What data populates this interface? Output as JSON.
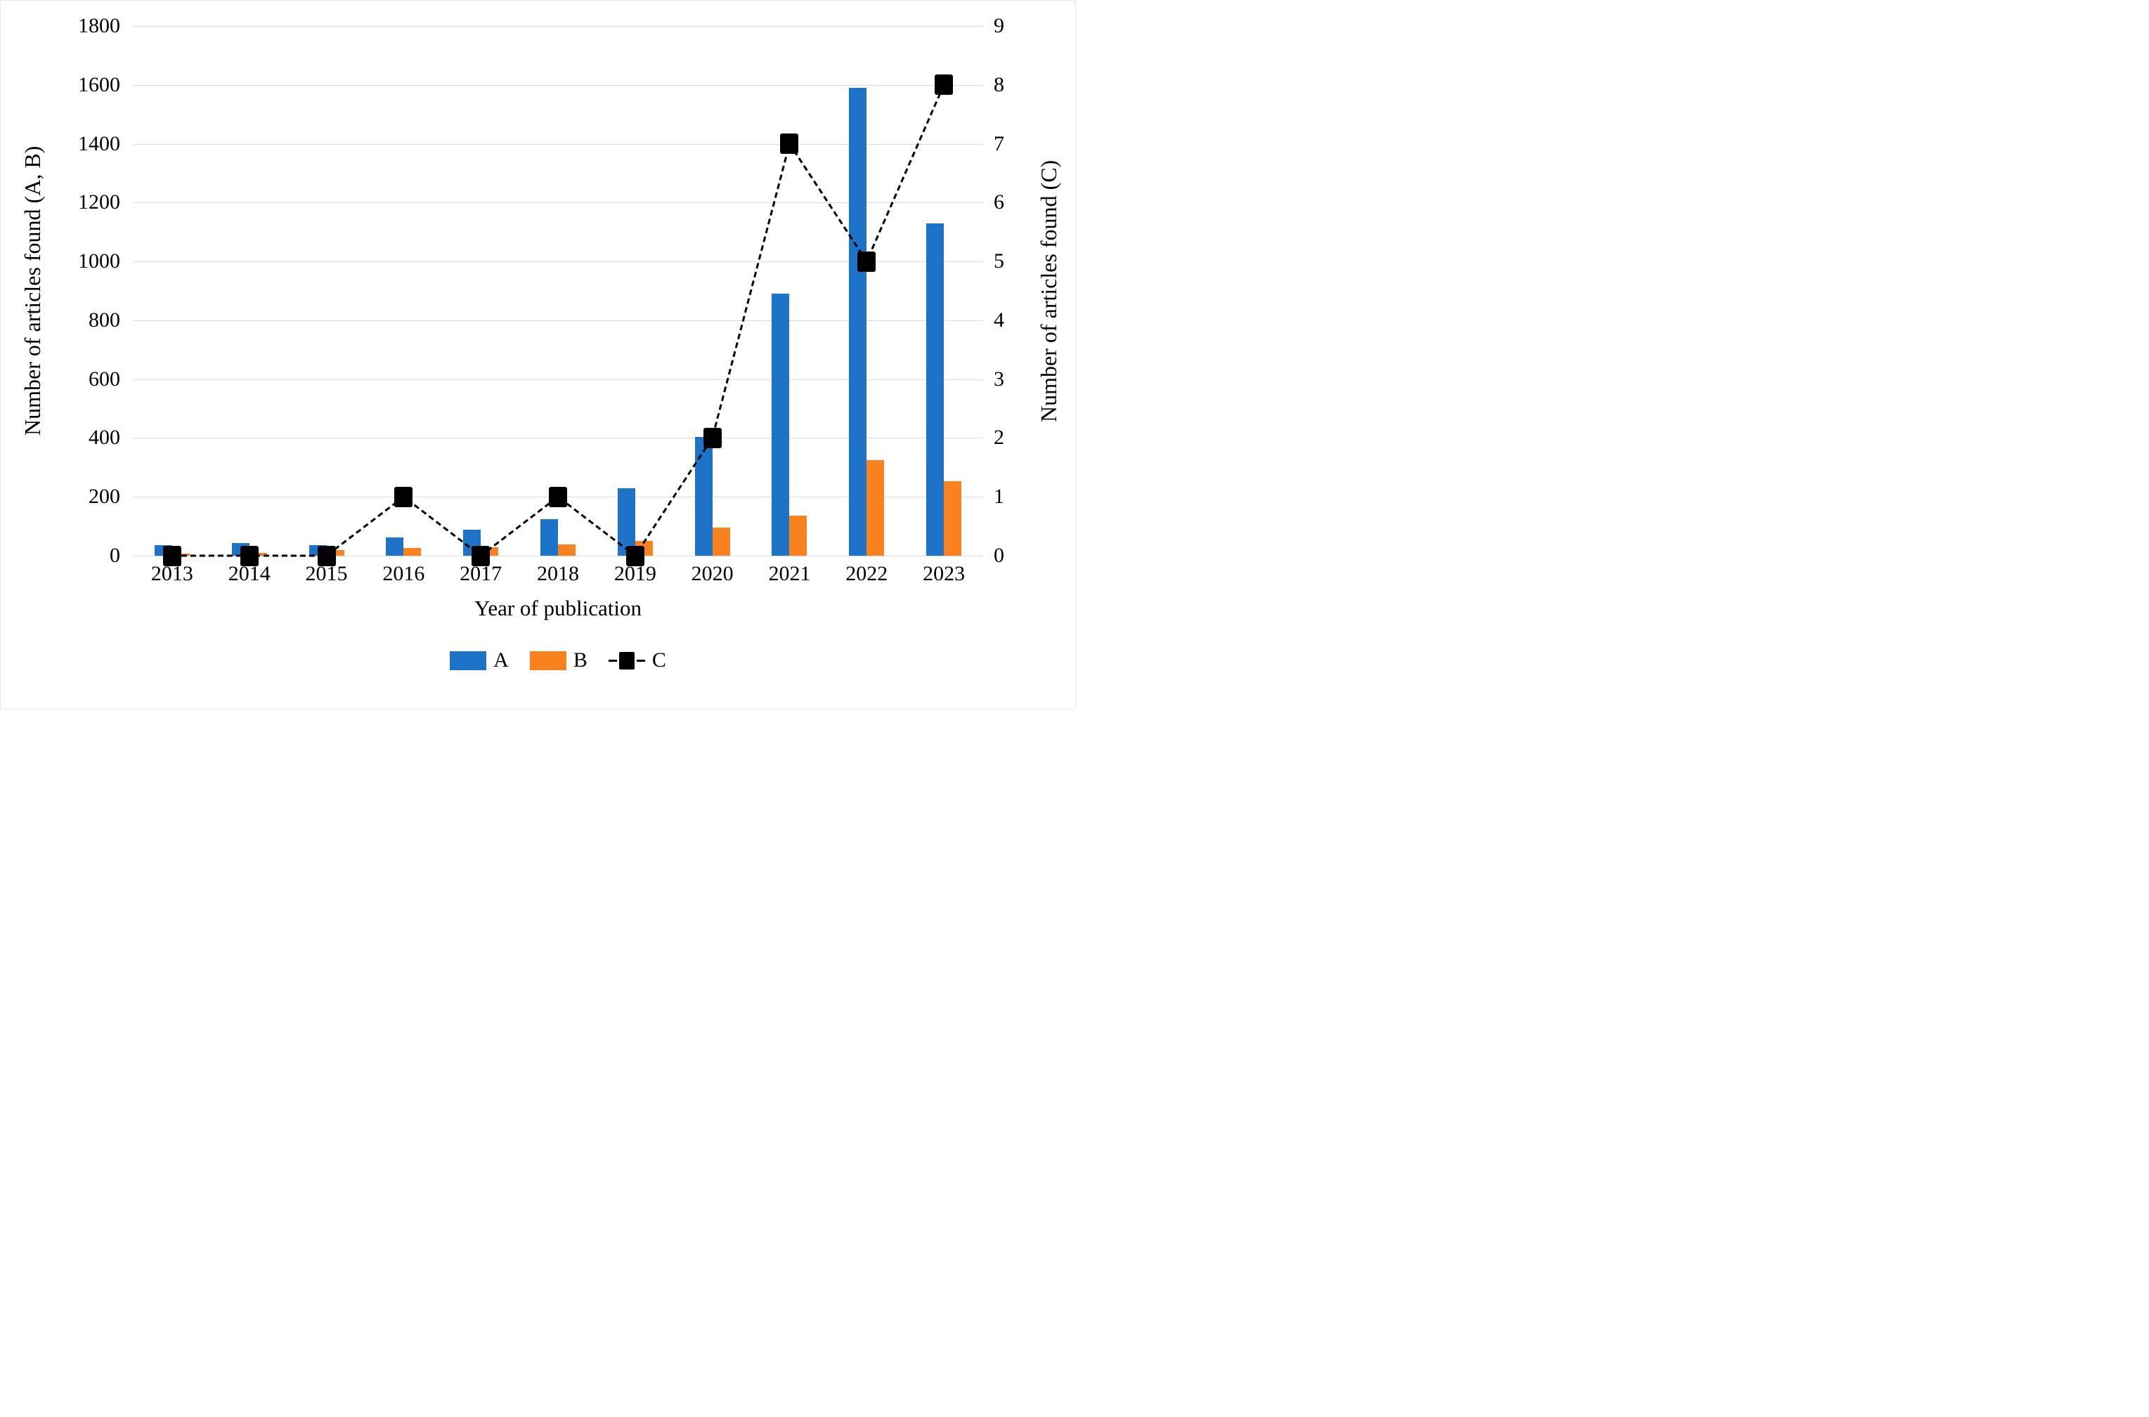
{
  "figure": {
    "background": "#ffffff"
  },
  "chart_data": {
    "type": "bar",
    "subtype": "grouped bars with secondary-axis dashed line",
    "categories": [
      "2013",
      "2014",
      "2015",
      "2016",
      "2017",
      "2018",
      "2019",
      "2020",
      "2021",
      "2022",
      "2023"
    ],
    "series": [
      {
        "name": "A",
        "type": "bar",
        "axis": "left",
        "color": "#1C73C8",
        "values": [
          35,
          42,
          35,
          62,
          88,
          123,
          230,
          403,
          890,
          1590,
          1130
        ]
      },
      {
        "name": "B",
        "type": "bar",
        "axis": "left",
        "color": "#F9821E",
        "values": [
          8,
          10,
          20,
          27,
          28,
          38,
          50,
          95,
          136,
          325,
          252
        ]
      },
      {
        "name": "C",
        "type": "line",
        "axis": "right",
        "color": "#000000",
        "line_style": "dashed",
        "marker": "square",
        "values": [
          0,
          0,
          0,
          1,
          0,
          1,
          0,
          2,
          7,
          5,
          8
        ]
      }
    ],
    "xlabel": "Year of publication",
    "left_axis": {
      "label": "Number of articles found (A, B)",
      "min": 0,
      "max": 1800,
      "step": 200,
      "ticks": [
        0,
        200,
        400,
        600,
        800,
        1000,
        1200,
        1400,
        1600,
        1800
      ]
    },
    "right_axis": {
      "label": "Number of articles found (C)",
      "min": 0,
      "max": 9,
      "step": 1,
      "ticks": [
        0,
        1,
        2,
        3,
        4,
        5,
        6,
        7,
        8,
        9
      ]
    },
    "grid": "horizontal, light gray",
    "legend": {
      "position": "bottom",
      "entries": [
        "A",
        "B",
        "C"
      ]
    }
  },
  "colors": {
    "bar_a": "#1C73C8",
    "bar_b": "#F9821E",
    "line_c": "#000000",
    "gridline": "#d9d9d9",
    "text": "#000000"
  }
}
